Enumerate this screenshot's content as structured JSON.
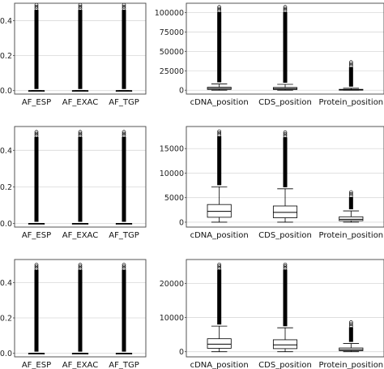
{
  "chart_data": [
    {
      "type": "box",
      "categories": [
        "AF_ESP",
        "AF_EXAC",
        "AF_TGP"
      ],
      "ylim": [
        -0.02,
        0.5
      ],
      "yticks": [
        0.0,
        0.2,
        0.4
      ],
      "ytick_labels": [
        "0.0",
        "0.2",
        "0.4"
      ],
      "grid": true,
      "boxes": [
        {
          "min": 0,
          "q1": 0,
          "median": 0,
          "q3": 0,
          "whisker_low": 0,
          "whisker_high": 0,
          "outlier_max": 0.49
        },
        {
          "min": 0,
          "q1": 0,
          "median": 0,
          "q3": 0,
          "whisker_low": 0,
          "whisker_high": 0,
          "outlier_max": 0.49
        },
        {
          "min": 0,
          "q1": 0,
          "median": 0,
          "q3": 0,
          "whisker_low": 0,
          "whisker_high": 0,
          "outlier_max": 0.49
        }
      ]
    },
    {
      "type": "box",
      "categories": [
        "cDNA_position",
        "CDS_position",
        "Protein_position"
      ],
      "ylim": [
        -5000,
        112000
      ],
      "yticks": [
        0,
        25000,
        50000,
        75000,
        100000
      ],
      "ytick_labels": [
        "0",
        "25000",
        "50000",
        "75000",
        "100000"
      ],
      "grid": true,
      "boxes": [
        {
          "q1": 1000,
          "median": 2200,
          "q3": 3800,
          "whisker_low": 0,
          "whisker_high": 8000,
          "outlier_max": 107000
        },
        {
          "q1": 900,
          "median": 2000,
          "q3": 3500,
          "whisker_low": 0,
          "whisker_high": 7500,
          "outlier_max": 107000
        },
        {
          "q1": 300,
          "median": 600,
          "q3": 1100,
          "whisker_low": 0,
          "whisker_high": 2500,
          "outlier_max": 36000
        }
      ]
    },
    {
      "type": "box",
      "categories": [
        "AF_ESP",
        "AF_EXAC",
        "AF_TGP"
      ],
      "ylim": [
        -0.02,
        0.53
      ],
      "yticks": [
        0.0,
        0.2,
        0.4
      ],
      "ytick_labels": [
        "0.0",
        "0.2",
        "0.4"
      ],
      "grid": true,
      "boxes": [
        {
          "q1": 0,
          "median": 0,
          "q3": 0,
          "whisker_low": 0,
          "whisker_high": 0,
          "outlier_max": 0.5
        },
        {
          "q1": 0,
          "median": 0,
          "q3": 0,
          "whisker_low": 0,
          "whisker_high": 0,
          "outlier_max": 0.5
        },
        {
          "q1": 0,
          "median": 0,
          "q3": 0,
          "whisker_low": 0,
          "whisker_high": 0,
          "outlier_max": 0.5
        }
      ]
    },
    {
      "type": "box",
      "categories": [
        "cDNA_position",
        "CDS_position",
        "Protein_position"
      ],
      "ylim": [
        -1000,
        19500
      ],
      "yticks": [
        0,
        5000,
        10000,
        15000
      ],
      "ytick_labels": [
        "0",
        "5000",
        "10000",
        "15000"
      ],
      "grid": true,
      "boxes": [
        {
          "q1": 1000,
          "median": 2200,
          "q3": 3600,
          "whisker_low": 0,
          "whisker_high": 7200,
          "outlier_max": 18500
        },
        {
          "q1": 900,
          "median": 2000,
          "q3": 3300,
          "whisker_low": 0,
          "whisker_high": 6800,
          "outlier_max": 18300
        },
        {
          "q1": 300,
          "median": 600,
          "q3": 1100,
          "whisker_low": 0,
          "whisker_high": 2300,
          "outlier_max": 6100
        }
      ]
    },
    {
      "type": "box",
      "categories": [
        "AF_ESP",
        "AF_EXAC",
        "AF_TGP"
      ],
      "ylim": [
        -0.02,
        0.53
      ],
      "yticks": [
        0.0,
        0.2,
        0.4
      ],
      "ytick_labels": [
        "0.0",
        "0.2",
        "0.4"
      ],
      "grid": true,
      "boxes": [
        {
          "q1": 0,
          "median": 0,
          "q3": 0,
          "whisker_low": 0,
          "whisker_high": 0,
          "outlier_max": 0.5
        },
        {
          "q1": 0,
          "median": 0,
          "q3": 0,
          "whisker_low": 0,
          "whisker_high": 0,
          "outlier_max": 0.5
        },
        {
          "q1": 0,
          "median": 0,
          "q3": 0,
          "whisker_low": 0,
          "whisker_high": 0,
          "outlier_max": 0.5
        }
      ]
    },
    {
      "type": "box",
      "categories": [
        "cDNA_position",
        "CDS_position",
        "Protein_position"
      ],
      "ylim": [
        -1500,
        27000
      ],
      "yticks": [
        0,
        10000,
        20000
      ],
      "ytick_labels": [
        "0",
        "10000",
        "20000"
      ],
      "grid": true,
      "boxes": [
        {
          "q1": 1000,
          "median": 2200,
          "q3": 3800,
          "whisker_low": 0,
          "whisker_high": 7500,
          "outlier_max": 25500
        },
        {
          "q1": 900,
          "median": 2000,
          "q3": 3500,
          "whisker_low": 0,
          "whisker_high": 7000,
          "outlier_max": 25500
        },
        {
          "q1": 300,
          "median": 600,
          "q3": 1100,
          "whisker_low": 0,
          "whisker_high": 2400,
          "outlier_max": 8600
        }
      ]
    }
  ]
}
